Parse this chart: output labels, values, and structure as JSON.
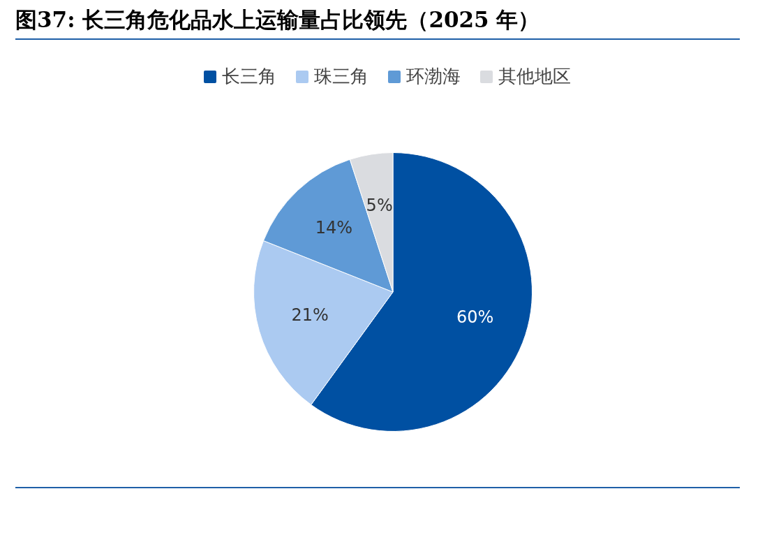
{
  "chart_data": {
    "type": "pie",
    "title": "图37: 长三角危化品水上运输量占比领先（2025 年）",
    "categories": [
      "长三角",
      "珠三角",
      "环渤海",
      "其他地区"
    ],
    "values": [
      60,
      21,
      14,
      5
    ],
    "colors": [
      "#0050a2",
      "#abcaf1",
      "#5f9ad6",
      "#dadce0"
    ],
    "value_labels": [
      "60%",
      "21%",
      "14%",
      "5%"
    ],
    "legend": "top"
  }
}
